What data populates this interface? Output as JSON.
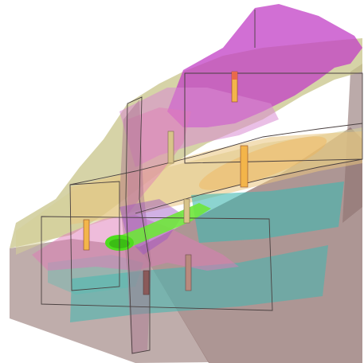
{
  "scene": {
    "caption": "",
    "layers": [
      {
        "id": "bedrock-mudstone",
        "color": "#8a6a66"
      },
      {
        "id": "sandstone-layer-upper",
        "color": "#c8c48a"
      },
      {
        "id": "sandstone-layer-middle",
        "color": "#e2c68a"
      },
      {
        "id": "weathered-zone",
        "color": "#d98ad1"
      },
      {
        "id": "surface-cover-magenta",
        "color": "#c23fc6"
      },
      {
        "id": "aquifer-teal",
        "color": "#3fb8b0"
      },
      {
        "id": "fault-zone-pink",
        "color": "#e07ab8"
      },
      {
        "id": "tunnel-excavation",
        "color": "#4fdc1e"
      },
      {
        "id": "boreholes",
        "color": "#f3b54a"
      }
    ],
    "boreholes": [
      {
        "id": "bh-1"
      },
      {
        "id": "bh-2"
      },
      {
        "id": "bh-3"
      },
      {
        "id": "bh-4"
      },
      {
        "id": "bh-5"
      },
      {
        "id": "bh-6"
      },
      {
        "id": "bh-7"
      }
    ]
  }
}
